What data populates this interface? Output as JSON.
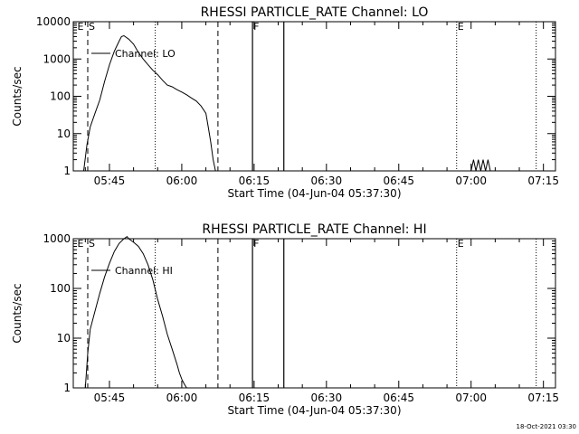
{
  "chart_data": [
    {
      "type": "line",
      "title": "RHESSI PARTICLE_RATE Channel: LO",
      "xlabel": "Start Time (04-Jun-04 05:37:30)",
      "ylabel": "Counts/sec",
      "xlim": [
        "05:37:30",
        "07:17:30"
      ],
      "ylim": [
        1,
        10000
      ],
      "yscale": "log",
      "xticks": [
        "05:45",
        "06:00",
        "06:15",
        "06:30",
        "06:45",
        "07:00",
        "07:15"
      ],
      "yticks": [
        "1",
        "10",
        "100",
        "1000",
        "10000"
      ],
      "legend": "Channel: LO",
      "series": [
        {
          "name": "Channel: LO",
          "x": [
            "05:39:40",
            "05:40:20",
            "05:41:00",
            "05:42:00",
            "05:43:00",
            "05:44:00",
            "05:45:00",
            "05:46:00",
            "05:47:00",
            "05:47:30",
            "05:48:00",
            "05:49:00",
            "05:50:00",
            "05:51:00",
            "05:52:00",
            "05:53:00",
            "05:54:00",
            "05:55:00",
            "05:56:00",
            "05:57:00",
            "05:58:00",
            "05:59:00",
            "06:00:00",
            "06:01:00",
            "06:02:00",
            "06:03:00",
            "06:04:00",
            "06:05:00",
            "06:05:30",
            "06:06:00",
            "06:06:30",
            "06:07:00"
          ],
          "y": [
            1,
            5,
            15,
            35,
            80,
            250,
            700,
            1600,
            3000,
            4000,
            4200,
            3400,
            2500,
            1500,
            1000,
            700,
            500,
            380,
            270,
            200,
            180,
            150,
            130,
            110,
            90,
            75,
            55,
            35,
            15,
            6,
            2,
            1
          ]
        }
      ],
      "vlines": {
        "dashed": [
          "05:40:30",
          "06:07:30"
        ],
        "solid": [
          "06:14:40",
          "06:21:10"
        ],
        "dotted": [
          "05:54:30",
          "06:57:00",
          "07:13:30"
        ]
      },
      "markers": [
        {
          "label": "E",
          "x": "05:38:10"
        },
        {
          "label": "S",
          "x": "05:40:30"
        },
        {
          "label": "F",
          "x": "06:14:40"
        },
        {
          "label": "E",
          "x": "06:57:00"
        }
      ],
      "noise": {
        "x": [
          "07:00:00",
          "07:00:30",
          "07:01:00",
          "07:01:30",
          "07:02:00",
          "07:02:30",
          "07:03:00",
          "07:03:30",
          "07:04:00"
        ],
        "y": [
          1,
          2,
          1,
          2,
          1,
          2,
          1,
          2,
          1
        ]
      }
    },
    {
      "type": "line",
      "title": "RHESSI PARTICLE_RATE Channel: HI",
      "xlabel": "Start Time (04-Jun-04 05:37:30)",
      "ylabel": "Counts/sec",
      "xlim": [
        "05:37:30",
        "07:17:30"
      ],
      "ylim": [
        1,
        1000
      ],
      "yscale": "log",
      "xticks": [
        "05:45",
        "06:00",
        "06:15",
        "06:30",
        "06:45",
        "07:00",
        "07:15"
      ],
      "yticks": [
        "1",
        "10",
        "100",
        "1000"
      ],
      "legend": "Channel: HI",
      "series": [
        {
          "name": "Channel: HI",
          "x": [
            "05:40:00",
            "05:40:30",
            "05:41:00",
            "05:42:00",
            "05:43:00",
            "05:44:00",
            "05:45:00",
            "05:46:00",
            "05:47:00",
            "05:48:00",
            "05:48:40",
            "05:49:00",
            "05:50:00",
            "05:51:00",
            "05:52:00",
            "05:53:00",
            "05:54:00",
            "05:55:00",
            "05:56:00",
            "05:57:00",
            "05:58:00",
            "05:59:00",
            "05:59:30",
            "06:00:00",
            "06:00:30",
            "06:01:00"
          ],
          "y": [
            1,
            5,
            15,
            35,
            80,
            170,
            320,
            550,
            800,
            1000,
            1100,
            1000,
            850,
            700,
            500,
            300,
            150,
            60,
            28,
            12,
            6,
            3,
            2,
            1.5,
            1.2,
            1
          ]
        }
      ],
      "vlines": {
        "dashed": [
          "05:40:30",
          "06:07:30"
        ],
        "solid": [
          "06:14:40",
          "06:21:10"
        ],
        "dotted": [
          "05:54:30",
          "06:57:00",
          "07:13:30"
        ]
      },
      "markers": [
        {
          "label": "E",
          "x": "05:38:10"
        },
        {
          "label": "S",
          "x": "05:40:30"
        },
        {
          "label": "F",
          "x": "06:14:40"
        },
        {
          "label": "E",
          "x": "06:57:00"
        }
      ]
    }
  ],
  "footer": {
    "timestamp": "18-Oct-2021 03:30"
  }
}
